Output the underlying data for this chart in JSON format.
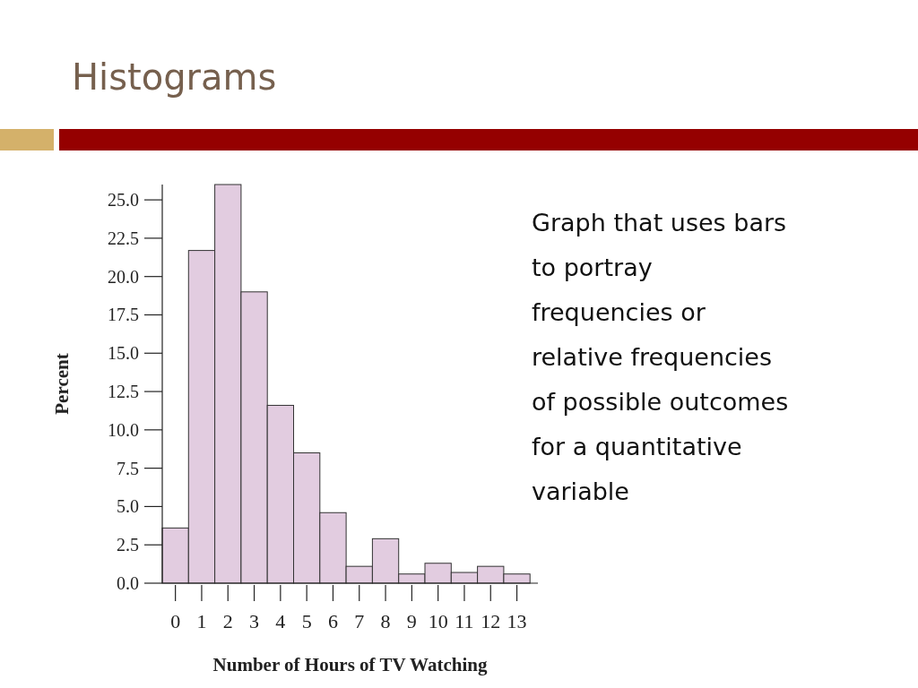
{
  "chart_data": {
    "type": "histogram",
    "title": "Histograms",
    "xlabel": "Number of Hours of TV Watching",
    "ylabel": "Percent",
    "bins": [
      -0.5,
      0.5,
      1.5,
      2.5,
      3.5,
      4.5,
      5.5,
      6.5,
      7.5,
      8.5,
      9.5,
      10.5,
      11.5,
      12.5,
      13.5
    ],
    "values": [
      3.6,
      21.7,
      26.0,
      19.0,
      11.6,
      8.5,
      4.6,
      1.1,
      2.9,
      0.6,
      1.3,
      0.7,
      1.1,
      0.6
    ],
    "color": "#e2cce0",
    "xlim": [
      -0.5,
      13.8
    ],
    "xticks": [
      0,
      1,
      2,
      3,
      4,
      5,
      6,
      7,
      8,
      9,
      10,
      11,
      12,
      13
    ],
    "ylim": [
      0,
      26
    ],
    "yticks": [
      {
        "value": 0,
        "label": "0.0"
      },
      {
        "value": 2.5,
        "label": "2.5"
      },
      {
        "value": 5,
        "label": "5.0"
      },
      {
        "value": 7.5,
        "label": "7.5"
      },
      {
        "value": 10,
        "label": "10.0"
      },
      {
        "value": 12.5,
        "label": "12.5"
      },
      {
        "value": 15,
        "label": "15.0"
      },
      {
        "value": 17.5,
        "label": "17.5"
      },
      {
        "value": 20,
        "label": "20.0"
      },
      {
        "value": 22.5,
        "label": "22.5"
      },
      {
        "value": 25,
        "label": "25.0"
      }
    ],
    "grid": false,
    "annotations": [
      "Graph that uses bars to portray frequencies or relative frequencies of possible outcomes for a quantitative variable"
    ]
  }
}
